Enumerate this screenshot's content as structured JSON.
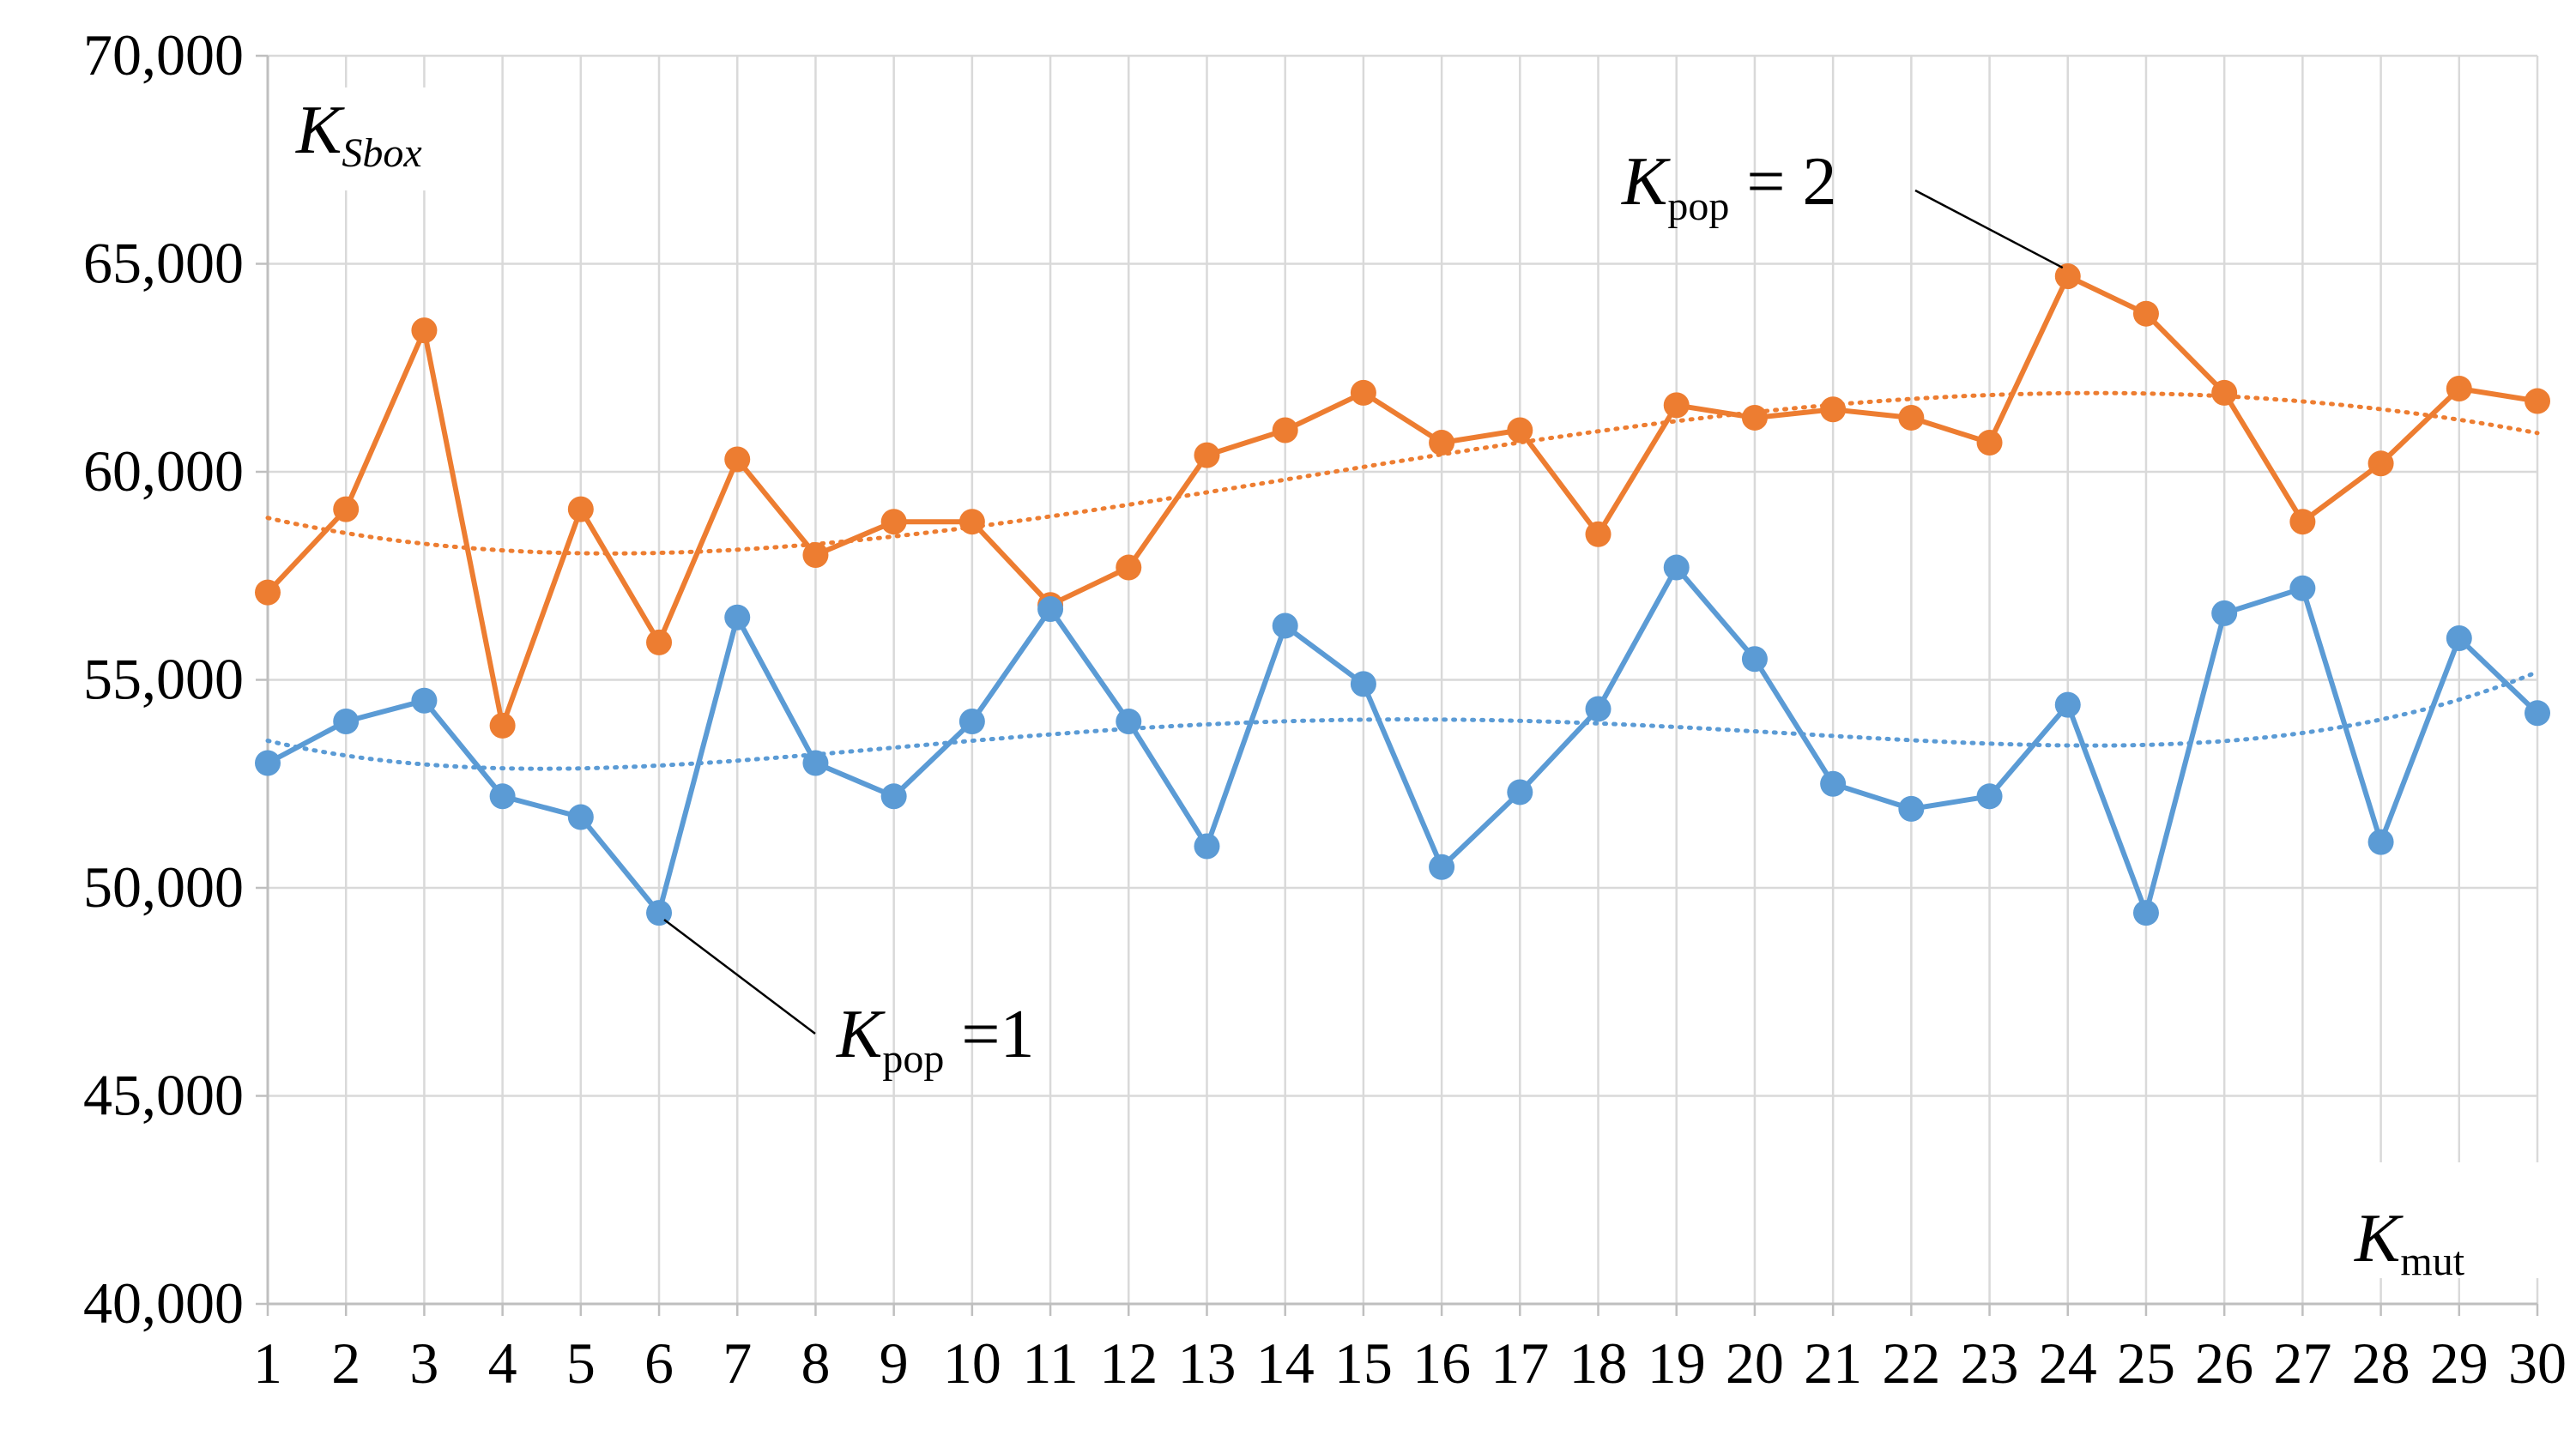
{
  "chart_data": {
    "type": "line",
    "x": [
      1,
      2,
      3,
      4,
      5,
      6,
      7,
      8,
      9,
      10,
      11,
      12,
      13,
      14,
      15,
      16,
      17,
      18,
      19,
      20,
      21,
      22,
      23,
      24,
      25,
      26,
      27,
      28,
      29,
      30
    ],
    "xtick_labels": [
      "1",
      "2",
      "3",
      "4",
      "5",
      "6",
      "7",
      "8",
      "9",
      "10",
      "11",
      "12",
      "13",
      "14",
      "15",
      "16",
      "17",
      "18",
      "19",
      "20",
      "21",
      "22",
      "23",
      "24",
      "25",
      "26",
      "27",
      "28",
      "29",
      "30"
    ],
    "ytick_labels": [
      "40,000",
      "45,000",
      "50,000",
      "55,000",
      "60,000",
      "65,000",
      "70,000"
    ],
    "yticks": [
      40,
      45,
      50,
      55,
      60,
      65,
      70
    ],
    "ylim": [
      40,
      70
    ],
    "grid": true,
    "ylabel": {
      "main": "K",
      "sub": "Sbox"
    },
    "xlabel": {
      "main": "K",
      "sub": "mut"
    },
    "series": [
      {
        "color": "#ed7d31",
        "values": [
          57.1,
          59.1,
          63.4,
          53.9,
          59.1,
          55.9,
          60.3,
          58.0,
          58.8,
          58.8,
          56.8,
          57.7,
          60.4,
          61.0,
          61.9,
          60.7,
          61.0,
          58.5,
          61.6,
          61.3,
          61.5,
          61.3,
          60.7,
          64.7,
          63.8,
          61.9,
          58.8,
          60.2,
          62.0,
          61.7
        ],
        "trend": true,
        "annotation": {
          "main": "K",
          "sub": "pop",
          "rest": " = 2",
          "x": 24
        }
      },
      {
        "color": "#5b9bd5",
        "values": [
          53.0,
          54.0,
          54.5,
          52.2,
          51.7,
          49.4,
          56.5,
          53.0,
          52.2,
          54.0,
          56.7,
          54.0,
          51.0,
          56.3,
          54.9,
          50.5,
          52.3,
          54.3,
          57.7,
          55.5,
          52.5,
          51.9,
          52.2,
          54.4,
          49.4,
          56.6,
          57.2,
          51.1,
          56.0,
          54.2
        ],
        "trend": true,
        "annotation": {
          "main": "K",
          "sub": "pop",
          "rest": " =1",
          "x": 6
        }
      }
    ]
  }
}
